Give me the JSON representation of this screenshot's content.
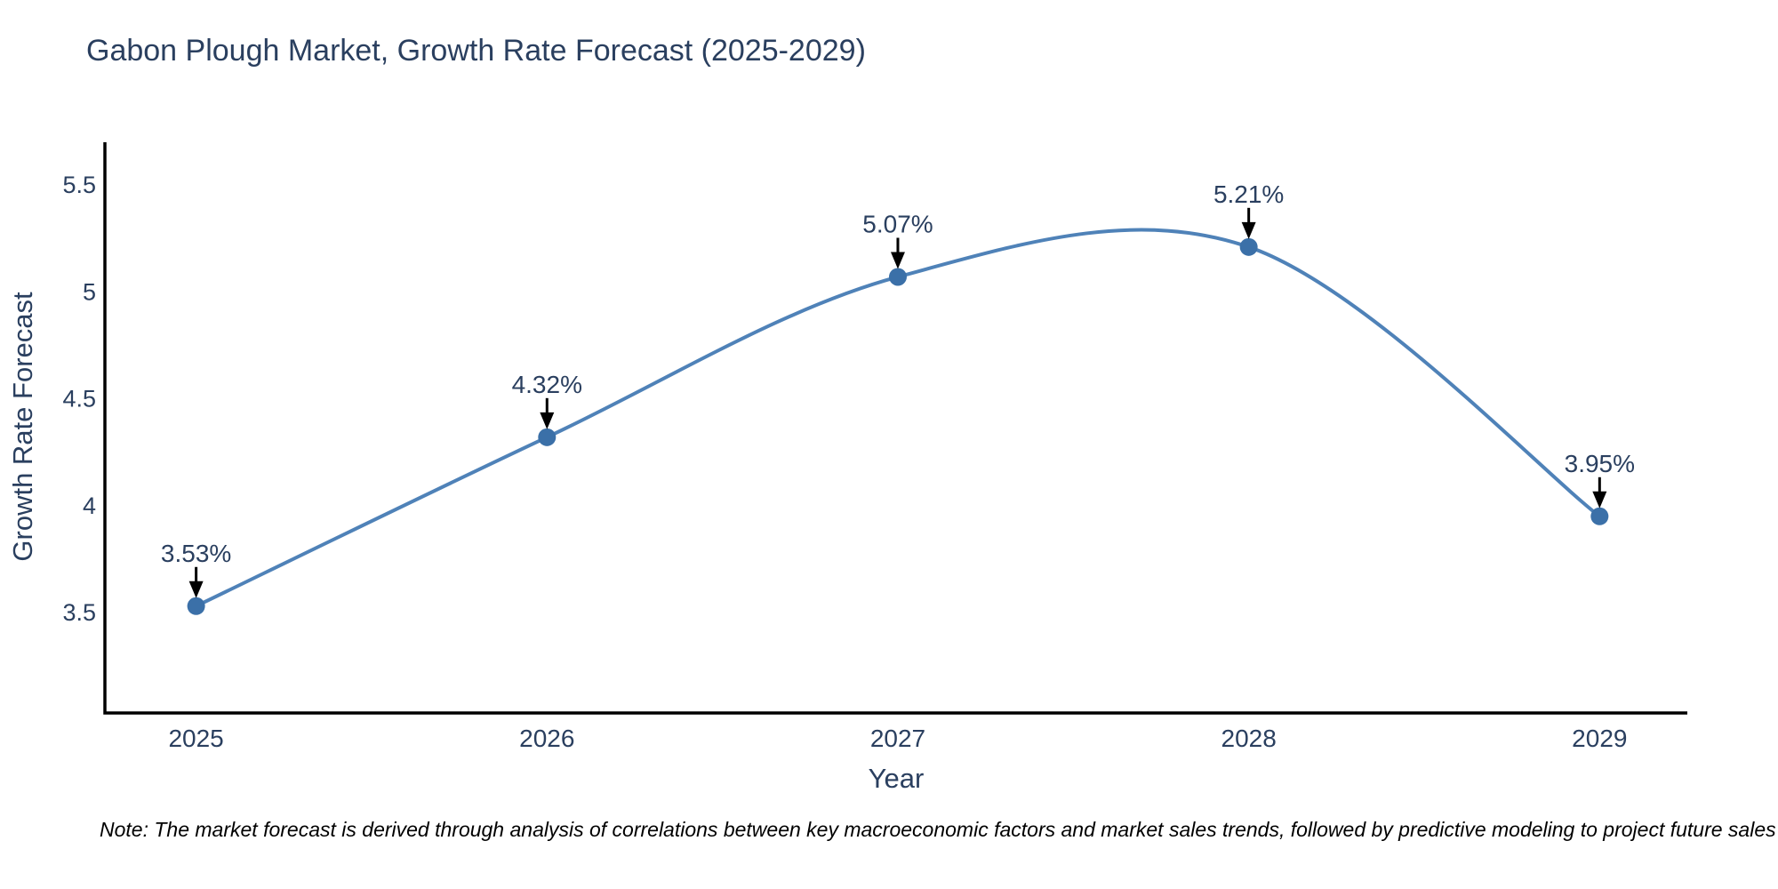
{
  "title": "Gabon Plough Market, Growth Rate Forecast (2025-2029)",
  "note": "Note: The market forecast is derived through analysis of correlations between key macroeconomic factors and market sales trends, followed by predictive modeling to project future sales",
  "chart_data": {
    "type": "line",
    "line_shape": "spline",
    "title": "Gabon Plough Market, Growth Rate Forecast (2025-2029)",
    "xlabel": "Year",
    "ylabel": "Growth Rate Forecast",
    "categories": [
      2025,
      2026,
      2027,
      2028,
      2029
    ],
    "values": [
      3.53,
      4.32,
      5.07,
      5.21,
      3.95
    ],
    "point_labels": [
      "3.53%",
      "4.32%",
      "5.07%",
      "5.21%",
      "3.95%"
    ],
    "x_tick_labels": [
      "2025",
      "2026",
      "2027",
      "2028",
      "2029"
    ],
    "y_ticks": [
      3.5,
      4,
      4.5,
      5,
      5.5
    ],
    "y_tick_labels": [
      "3.5",
      "4",
      "4.5",
      "5",
      "5.5"
    ],
    "xlim": [
      2024.74,
      2029.25
    ],
    "ylim": [
      3.03,
      5.7
    ],
    "grid": false,
    "legend": "none",
    "colors": {
      "line": "#4f82b8",
      "marker": "#3b70a8",
      "axis": "#000000",
      "text": "#2a3f5f",
      "annotation_arrow": "#000000"
    }
  }
}
